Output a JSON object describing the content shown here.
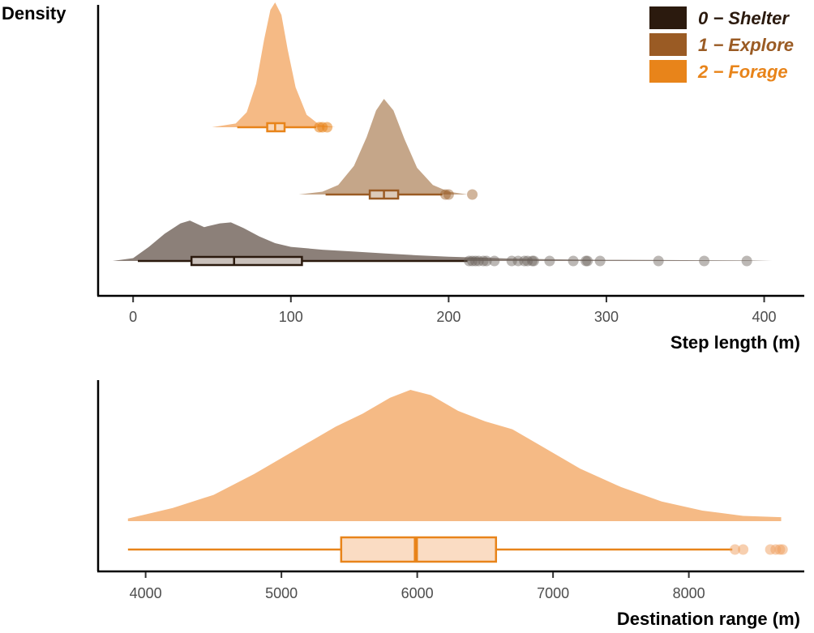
{
  "chart_data": [
    {
      "type": "raincloud",
      "ylabel": "Density",
      "xlabel": "Step length (m)",
      "xlim": [
        -15,
        410
      ],
      "xticks": [
        0,
        100,
        200,
        300,
        400
      ],
      "grid": false,
      "legend_position": "top-right",
      "series": [
        {
          "name": "0 − Shelter",
          "color": "#2b1a0e",
          "fill": "#8c8079",
          "box": {
            "min": 3,
            "q1": 37,
            "median": 64,
            "q3": 107,
            "max": 212
          },
          "outliers": [
            213,
            215,
            217,
            219,
            222,
            224,
            229,
            240,
            244,
            248,
            250,
            253,
            254,
            264,
            279,
            287,
            288,
            296,
            333,
            362,
            389
          ],
          "density_x": [
            -13,
            0,
            10,
            20,
            30,
            36,
            45,
            55,
            62,
            70,
            80,
            90,
            100,
            120,
            140,
            160,
            180,
            200,
            220,
            240,
            260,
            280,
            300,
            330,
            360,
            390,
            405
          ],
          "density_y": [
            0.0,
            0.06,
            0.3,
            0.58,
            0.8,
            0.86,
            0.72,
            0.8,
            0.82,
            0.7,
            0.52,
            0.38,
            0.3,
            0.24,
            0.2,
            0.16,
            0.12,
            0.09,
            0.07,
            0.05,
            0.04,
            0.03,
            0.025,
            0.02,
            0.015,
            0.01,
            0.0
          ]
        },
        {
          "name": "1 − Explore",
          "color": "#9a5b24",
          "fill": "#c5a689",
          "box": {
            "min": 122,
            "q1": 150,
            "median": 159,
            "q3": 168,
            "max": 196
          },
          "outliers": [
            198,
            200,
            215
          ],
          "density_x": [
            105,
            120,
            130,
            140,
            148,
            154,
            159,
            165,
            172,
            180,
            190,
            200,
            212
          ],
          "density_y": [
            0.0,
            0.03,
            0.1,
            0.3,
            0.6,
            0.88,
            1.0,
            0.88,
            0.58,
            0.28,
            0.1,
            0.03,
            0.0
          ]
        },
        {
          "name": "2 − Forage",
          "color": "#e8841a",
          "fill": "#f5ba85",
          "box": {
            "min": 66,
            "q1": 85,
            "median": 90,
            "q3": 96,
            "max": 116
          },
          "outliers": [
            118,
            120,
            123
          ],
          "density_x": [
            50,
            65,
            72,
            78,
            83,
            87,
            90,
            94,
            98,
            103,
            110,
            118,
            128
          ],
          "density_y": [
            0.0,
            0.03,
            0.12,
            0.35,
            0.7,
            0.94,
            1.0,
            0.9,
            0.62,
            0.32,
            0.1,
            0.02,
            0.0
          ]
        }
      ]
    },
    {
      "type": "raincloud",
      "xlabel": "Destination range (m)",
      "xlim": [
        3650,
        8850
      ],
      "xticks": [
        4000,
        5000,
        6000,
        7000,
        8000
      ],
      "grid": false,
      "series": [
        {
          "color": "#e8841a",
          "fill": "#f5ba85",
          "box": {
            "min": 3870,
            "q1": 5440,
            "median": 5990,
            "q3": 6580,
            "max": 8320
          },
          "outliers": [
            8340,
            8400,
            8600,
            8640,
            8670,
            8690
          ],
          "density_x": [
            3870,
            4200,
            4500,
            4800,
            5000,
            5200,
            5400,
            5600,
            5800,
            5950,
            6100,
            6300,
            6500,
            6700,
            6900,
            7200,
            7500,
            7800,
            8100,
            8400,
            8680
          ],
          "density_y": [
            0.02,
            0.1,
            0.2,
            0.36,
            0.48,
            0.6,
            0.72,
            0.82,
            0.94,
            1.0,
            0.96,
            0.84,
            0.76,
            0.7,
            0.58,
            0.4,
            0.26,
            0.15,
            0.08,
            0.04,
            0.03
          ]
        }
      ]
    }
  ]
}
